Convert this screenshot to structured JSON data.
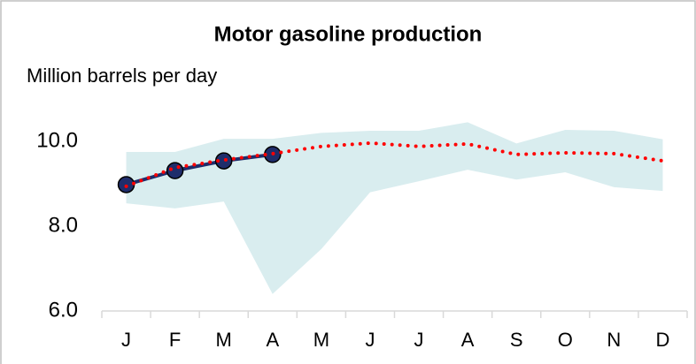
{
  "chart_data": {
    "type": "line",
    "title": "Motor gasoline production",
    "subtitle": "Million barrels per day",
    "categories": [
      "J",
      "F",
      "M",
      "A",
      "M",
      "J",
      "J",
      "A",
      "S",
      "O",
      "N",
      "D"
    ],
    "band": {
      "color": "#d9edef",
      "high": [
        9.75,
        9.75,
        10.06,
        10.06,
        10.2,
        10.25,
        10.25,
        10.45,
        9.95,
        10.27,
        10.25,
        10.05
      ],
      "low": [
        8.54,
        8.42,
        8.58,
        6.4,
        7.46,
        8.8,
        9.06,
        9.33,
        9.1,
        9.27,
        8.92,
        8.83
      ]
    },
    "series": [
      {
        "color": "#ff0000",
        "style": "dotted",
        "values": [
          8.94,
          9.38,
          9.56,
          9.71,
          9.88,
          9.96,
          9.88,
          9.94,
          9.69,
          9.73,
          9.71,
          9.54
        ]
      },
      {
        "color": "#1f2d6b",
        "style": "solid",
        "markers": true,
        "values": [
          8.98,
          9.31,
          9.54,
          9.69,
          null,
          null,
          null,
          null,
          null,
          null,
          null,
          null
        ]
      }
    ],
    "ylim": [
      6,
      10.5
    ],
    "yticks": [
      {
        "value": 6,
        "label": "6.0"
      },
      {
        "value": 8,
        "label": "8.0"
      },
      {
        "value": 10,
        "label": "10.0"
      }
    ],
    "grid": false
  }
}
